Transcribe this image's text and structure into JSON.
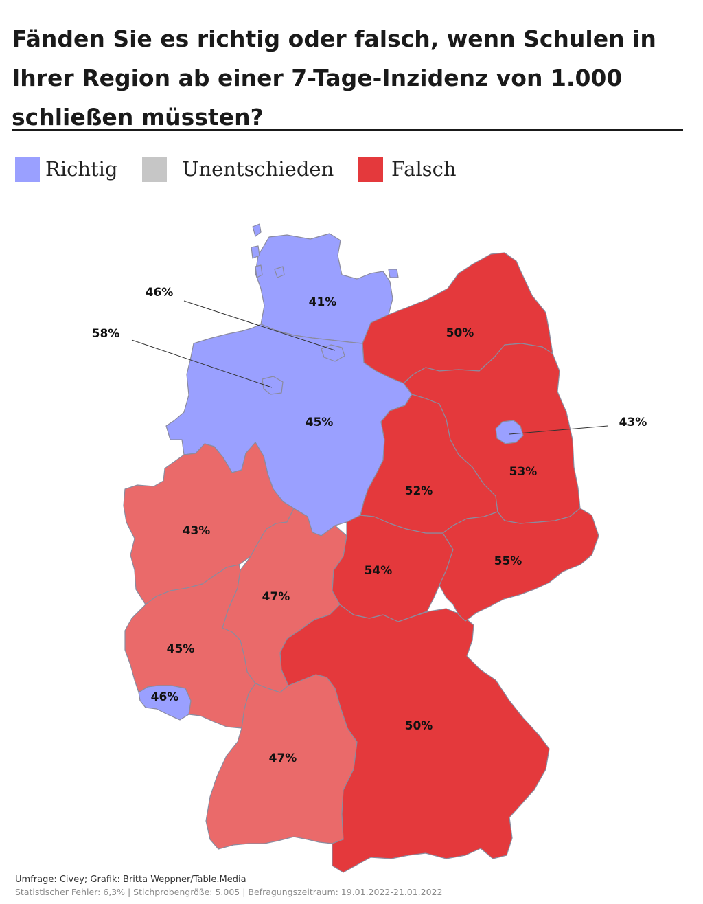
{
  "title": "Fänden Sie es richtig oder falsch, wenn Schulen in Ihrer Region ab einer 7-Tage-Inzidenz von 1.000 schließen müssten?",
  "legend": [
    {
      "label": "Richtig",
      "color": "#9aa0ff"
    },
    {
      "label": "Unentschieden",
      "color": "#c6c6c6"
    },
    {
      "label": "Falsch",
      "color": "#e4393c"
    }
  ],
  "colors": {
    "richtig": "#9aa0ff",
    "falsch_strong": "#e4393c",
    "falsch_light": "#ea6a6a",
    "border": "#8b8b9e"
  },
  "regions": {
    "sh": "41%",
    "hh": "46%",
    "hb": "58%",
    "ni": "45%",
    "mv": "50%",
    "bb": "53%",
    "be": "43%",
    "st": "52%",
    "sn": "55%",
    "th": "54%",
    "nw": "43%",
    "he": "47%",
    "rp": "45%",
    "sl": "46%",
    "bw": "47%",
    "by": "50%"
  },
  "footer": {
    "line1": "Umfrage: Civey; Grafik: Britta Weppner/Table.Media",
    "line2": "Statistischer Fehler: 6,3% | Stichprobengröße: 5.005 | Befragungszeitraum: 19.01.2022-21.01.2022"
  }
}
